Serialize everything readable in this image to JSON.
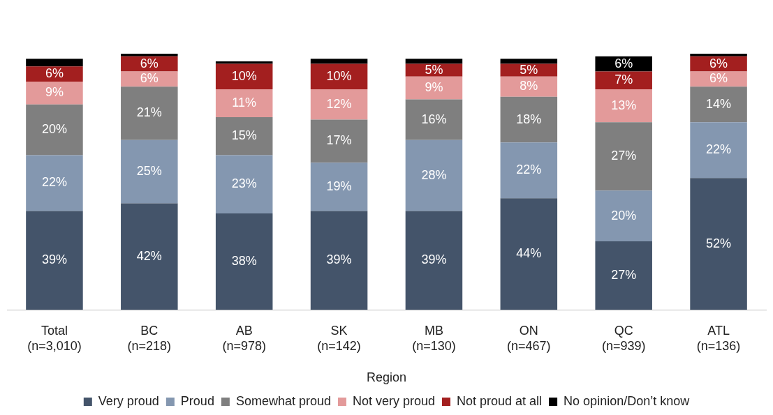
{
  "chart_data": {
    "type": "bar",
    "stacked": true,
    "xlabel": "Region",
    "grid": false,
    "legend": "bottom",
    "categories": [
      "Total\n(n=3,010)",
      "BC\n(n=218)",
      "AB\n(n=978)",
      "SK\n(n=142)",
      "MB\n(n=130)",
      "ON\n(n=467)",
      "QC\n(n=939)",
      "ATL\n(n=136)"
    ],
    "series": [
      {
        "name": "Very proud",
        "color": "#44546a",
        "values": [
          39,
          42,
          38,
          39,
          39,
          44,
          27,
          52
        ],
        "value_labels": [
          "39%",
          "42%",
          "38%",
          "39%",
          "39%",
          "44%",
          "27%",
          "52%"
        ]
      },
      {
        "name": "Proud",
        "color": "#8497b0",
        "values": [
          22,
          25,
          23,
          19,
          28,
          22,
          20,
          22
        ],
        "value_labels": [
          "22%",
          "25%",
          "23%",
          "19%",
          "28%",
          "22%",
          "20%",
          "22%"
        ]
      },
      {
        "name": "Somewhat proud",
        "color": "#7f7f7f",
        "values": [
          20,
          21,
          15,
          17,
          16,
          18,
          27,
          14
        ],
        "value_labels": [
          "20%",
          "21%",
          "15%",
          "17%",
          "16%",
          "18%",
          "27%",
          "14%"
        ]
      },
      {
        "name": "Not very proud",
        "color": "#e39a9a",
        "values": [
          9,
          6,
          11,
          12,
          9,
          8,
          13,
          6
        ],
        "value_labels": [
          "9%",
          "6%",
          "11%",
          "12%",
          "9%",
          "8%",
          "13%",
          "6%"
        ]
      },
      {
        "name": "Not proud at all",
        "color": "#a31f1f",
        "values": [
          6,
          6,
          10,
          10,
          5,
          5,
          7,
          6
        ],
        "value_labels": [
          "6%",
          "6%",
          "10%",
          "10%",
          "5%",
          "5%",
          "7%",
          "6%"
        ]
      },
      {
        "name": "No opinion/Don’t know",
        "color": "#000000",
        "values": [
          3,
          1,
          1,
          2,
          2,
          2,
          6,
          1
        ],
        "value_labels": [
          null,
          null,
          null,
          null,
          null,
          null,
          "6%",
          null
        ]
      }
    ]
  }
}
